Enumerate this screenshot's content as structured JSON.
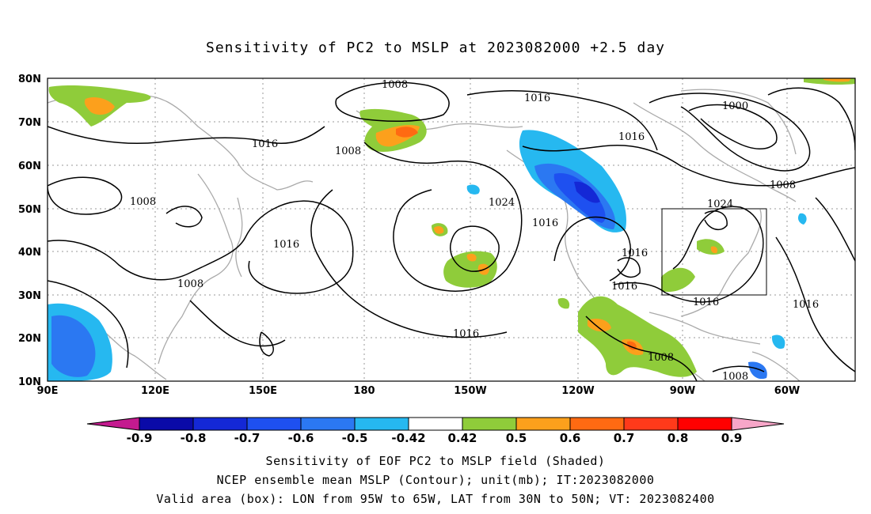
{
  "title": "Sensitivity of PC2 to MSLP at 2023082000 +2.5 day",
  "lat_ticks": [
    "80N",
    "70N",
    "60N",
    "50N",
    "40N",
    "30N",
    "20N",
    "10N"
  ],
  "lon_ticks": [
    "90E",
    "120E",
    "150E",
    "180",
    "150W",
    "120W",
    "90W",
    "60W"
  ],
  "contour_labels": [
    "1008",
    "1016",
    "1008",
    "1000",
    "1016",
    "1016",
    "1008",
    "1024",
    "1016",
    "1024",
    "1016",
    "1008",
    "1016",
    "1016",
    "1016",
    "1016",
    "1008",
    "1008",
    "1008",
    "1016"
  ],
  "colorbar": {
    "labels": [
      "-0.9",
      "-0.8",
      "-0.7",
      "-0.6",
      "-0.5",
      "-0.42",
      "0.42",
      "0.5",
      "0.6",
      "0.7",
      "0.8",
      "0.9"
    ],
    "colors": [
      "#c41a8f",
      "#0a0aa8",
      "#1428d6",
      "#1e50f0",
      "#2b78f2",
      "#26b8f0",
      "#ffffff",
      "#8fcc3a",
      "#fca01c",
      "#ff6a12",
      "#ff3a1a",
      "#ff0000",
      "#f7a6c8"
    ]
  },
  "captions": [
    "Sensitivity of EOF PC2 to MSLP field (Shaded)",
    "NCEP ensemble mean MSLP (Contour); unit(mb); IT:2023082000",
    "Valid area (box): LON from 95W to 65W, LAT from 30N to 50N; VT: 2023082400"
  ]
}
